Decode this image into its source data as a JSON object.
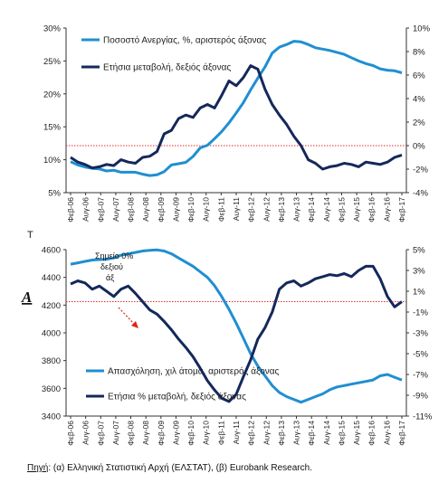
{
  "source": {
    "label": "Πηγή",
    "text": ": (α) Ελληνική Στατιστική Αρχή (ΕΛΣΤΑΤ), (β) Eurobank Research."
  },
  "chart_data": [
    {
      "type": "line",
      "x_tick_labels": [
        "Φεβ-06",
        "Αυγ-06",
        "Φεβ-07",
        "Αυγ-07",
        "Φεβ-08",
        "Αυγ-08",
        "Φεβ-09",
        "Αυγ-09",
        "Φεβ-10",
        "Αυγ-10",
        "Φεβ-11",
        "Αυγ-11",
        "Φεβ-12",
        "Αυγ-12",
        "Φεβ-13",
        "Αυγ-13",
        "Φεβ-14",
        "Αυγ-14",
        "Φεβ-15",
        "Αυγ-15",
        "Φεβ-16",
        "Αυγ-16",
        "Φεβ-17"
      ],
      "y_left_ticks": [
        "5%",
        "10%",
        "15%",
        "20%",
        "25%",
        "30%"
      ],
      "y_left_lim": [
        5,
        30
      ],
      "y_right_ticks": [
        "-4%",
        "-2%",
        "0%",
        "2%",
        "4%",
        "6%",
        "8%",
        "10%"
      ],
      "y_right_lim": [
        -4,
        10
      ],
      "reference_line": {
        "axis": "right",
        "value": 0,
        "color": "#e03030"
      },
      "series": [
        {
          "name": "Ποσοστό Ανεργίας, %, αριστερός άξονας",
          "axis": "left",
          "color": "#1f8fd1",
          "values": [
            9.7,
            9.2,
            8.9,
            8.7,
            8.6,
            8.3,
            8.4,
            8.1,
            8.1,
            8.1,
            7.8,
            7.6,
            7.7,
            8.2,
            9.2,
            9.4,
            9.6,
            10.5,
            11.8,
            12.2,
            13.2,
            14.3,
            15.6,
            17.1,
            18.7,
            20.6,
            22.4,
            24.1,
            26.2,
            27.1,
            27.5,
            28.0,
            27.9,
            27.5,
            27.0,
            26.8,
            26.6,
            26.3,
            26.0,
            25.5,
            25.0,
            24.6,
            24.3,
            23.8,
            23.6,
            23.5,
            23.2
          ]
        },
        {
          "name": "Ετήσια μεταβολή, δεξιός άξονας",
          "axis": "right",
          "color": "#14285a",
          "values": [
            -1.0,
            -1.4,
            -1.6,
            -1.9,
            -1.8,
            -1.6,
            -1.7,
            -1.2,
            -1.4,
            -1.5,
            -1.0,
            -0.9,
            -0.5,
            1.0,
            1.3,
            2.3,
            2.6,
            2.4,
            3.2,
            3.5,
            3.2,
            4.3,
            5.5,
            5.1,
            5.8,
            6.8,
            6.5,
            4.8,
            3.5,
            2.6,
            1.8,
            0.8,
            0.0,
            -1.2,
            -1.5,
            -2.0,
            -1.8,
            -1.7,
            -1.5,
            -1.6,
            -1.8,
            -1.4,
            -1.5,
            -1.6,
            -1.4,
            -1.0,
            -0.8
          ]
        }
      ]
    },
    {
      "type": "line",
      "x_tick_labels": [
        "Φεβ-06",
        "Αυγ-06",
        "Φεβ-07",
        "Αυγ-07",
        "Φεβ-08",
        "Αυγ-08",
        "Φεβ-09",
        "Αυγ-09",
        "Φεβ-10",
        "Αυγ-10",
        "Φεβ-11",
        "Αυγ-11",
        "Φεβ-12",
        "Αυγ-12",
        "Φεβ-13",
        "Αυγ-13",
        "Φεβ-14",
        "Αυγ-14",
        "Φεβ-15",
        "Αυγ-15",
        "Φεβ-16",
        "Αυγ-16",
        "Φεβ-17"
      ],
      "y_left_ticks": [
        "3400",
        "3600",
        "3800",
        "4000",
        "4200",
        "4400",
        "4600"
      ],
      "y_left_lim": [
        3400,
        4600
      ],
      "y_right_ticks": [
        "-11%",
        "-9%",
        "-7%",
        "-5%",
        "-3%",
        "-1%",
        "1%",
        "3%",
        "5%"
      ],
      "y_right_lim": [
        -11,
        5
      ],
      "reference_line": {
        "axis": "right",
        "value": 0,
        "color": "#e03030"
      },
      "series": [
        {
          "name": "Απασχόληση, χιλ άτομα, αριστερός άξονας",
          "axis": "left",
          "color": "#1f8fd1",
          "values": [
            4495,
            4505,
            4515,
            4525,
            4528,
            4530,
            4540,
            4560,
            4570,
            4580,
            4590,
            4595,
            4598,
            4590,
            4570,
            4540,
            4510,
            4480,
            4440,
            4400,
            4340,
            4260,
            4170,
            4070,
            3960,
            3850,
            3760,
            3690,
            3620,
            3570,
            3540,
            3520,
            3500,
            3520,
            3540,
            3560,
            3590,
            3610,
            3620,
            3630,
            3640,
            3650,
            3660,
            3690,
            3700,
            3680,
            3660
          ]
        },
        {
          "name": "Ετήσια % μεταβολή, δεξιός άξονας",
          "axis": "right",
          "color": "#14285a",
          "values": [
            1.7,
            2.0,
            1.8,
            1.2,
            1.5,
            1.0,
            0.5,
            1.2,
            1.5,
            0.8,
            0.0,
            -0.8,
            -1.2,
            -1.9,
            -2.7,
            -3.6,
            -4.4,
            -5.3,
            -6.4,
            -7.6,
            -8.5,
            -9.3,
            -9.6,
            -8.9,
            -7.2,
            -5.6,
            -3.6,
            -2.5,
            -1.0,
            1.2,
            1.8,
            2.0,
            1.5,
            1.8,
            2.2,
            2.4,
            2.6,
            2.5,
            2.7,
            2.4,
            3.0,
            3.4,
            3.4,
            2.2,
            0.5,
            -0.5,
            0.0
          ]
        }
      ]
    }
  ],
  "annotations": {
    "top_letter": "T",
    "bottom_letter": "A",
    "zero_point_note": [
      "Σημείο 0%",
      "δεξιού",
      "άξ"
    ]
  }
}
